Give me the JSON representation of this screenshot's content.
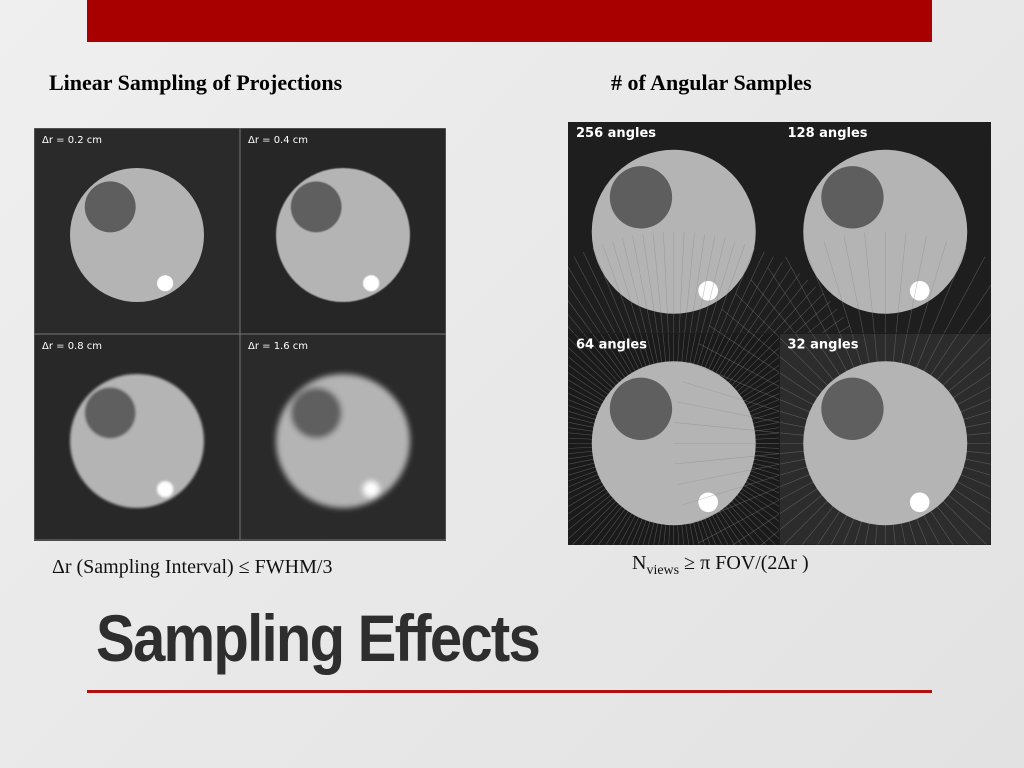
{
  "header": {
    "left_heading": "Linear Sampling of Projections",
    "right_heading": "# of Angular Samples"
  },
  "left_figure": {
    "panels": [
      "Δr = 0.2 cm",
      "Δr = 0.4 cm",
      "Δr = 0.8 cm",
      "Δr = 1.6 cm"
    ]
  },
  "right_figure": {
    "panels": [
      "256 angles",
      "128 angles",
      "64 angles",
      "32 angles"
    ]
  },
  "formulas": {
    "left": "Δr (Sampling Interval) ≤ FWHM/3",
    "right": {
      "base": "N",
      "subscript": "views",
      "rest": "≥ π FOV/(2Δr )"
    }
  },
  "title": "Sampling Effects"
}
